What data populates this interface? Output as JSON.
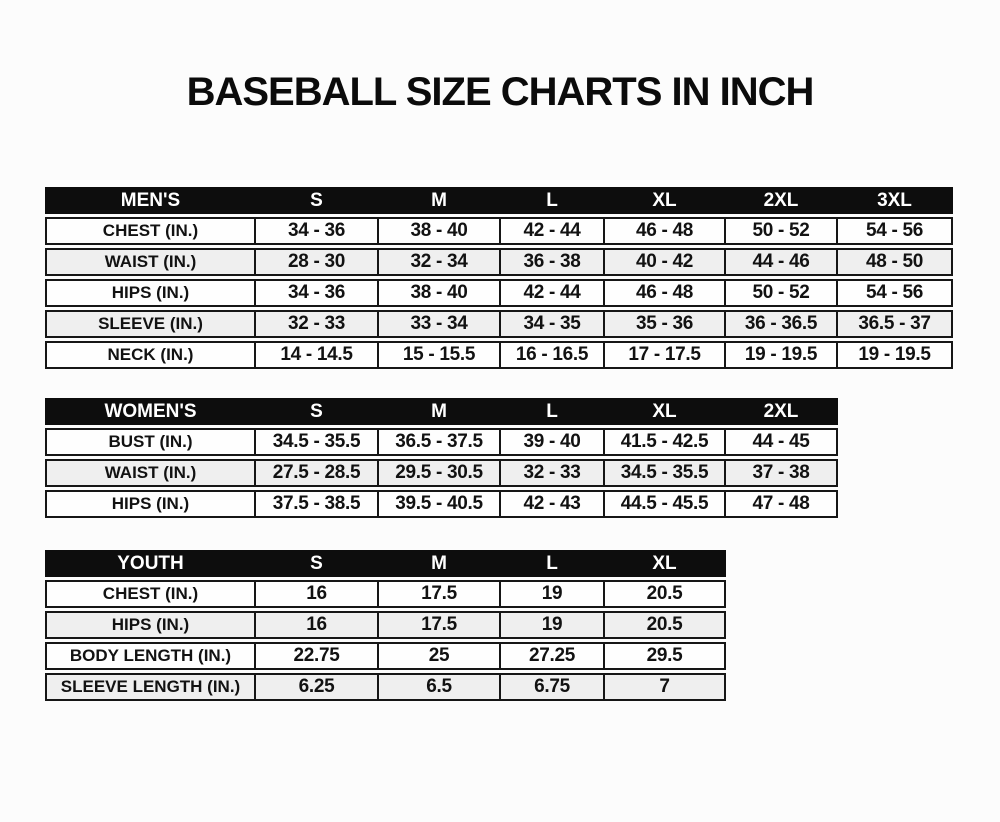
{
  "page": {
    "title": "BASEBALL SIZE CHARTS IN INCH"
  },
  "colors": {
    "header_bg": "#0d0d0d",
    "header_text": "#ffffff",
    "row_bg": "#fefefe",
    "row_alt_bg": "#efefef",
    "border": "#161616",
    "text": "#121212",
    "page_bg": "#fcfcfc"
  },
  "chart_data": [
    {
      "type": "table",
      "title": "MEN'S",
      "columns": [
        "MEN'S",
        "S",
        "M",
        "L",
        "XL",
        "2XL",
        "3XL"
      ],
      "rows": [
        {
          "label": "CHEST (IN.)",
          "values": [
            "34 - 36",
            "38 - 40",
            "42 - 44",
            "46 - 48",
            "50 - 52",
            "54 - 56"
          ]
        },
        {
          "label": "WAIST (IN.)",
          "values": [
            "28 - 30",
            "32 - 34",
            "36 - 38",
            "40 - 42",
            "44 - 46",
            "48 - 50"
          ]
        },
        {
          "label": "HIPS (IN.)",
          "values": [
            "34 - 36",
            "38 - 40",
            "42 - 44",
            "46 - 48",
            "50 - 52",
            "54 - 56"
          ]
        },
        {
          "label": "SLEEVE (IN.)",
          "values": [
            "32 - 33",
            "33 - 34",
            "34 - 35",
            "35 - 36",
            "36 - 36.5",
            "36.5 - 37"
          ]
        },
        {
          "label": "NECK (IN.)",
          "values": [
            "14 - 14.5",
            "15 - 15.5",
            "16 - 16.5",
            "17 - 17.5",
            "19 - 19.5",
            "19 - 19.5"
          ]
        }
      ]
    },
    {
      "type": "table",
      "title": "WOMEN'S",
      "columns": [
        "WOMEN'S",
        "S",
        "M",
        "L",
        "XL",
        "2XL"
      ],
      "rows": [
        {
          "label": "BUST (IN.)",
          "values": [
            "34.5 - 35.5",
            "36.5 - 37.5",
            "39 - 40",
            "41.5 - 42.5",
            "44 - 45"
          ]
        },
        {
          "label": "WAIST (IN.)",
          "values": [
            "27.5 - 28.5",
            "29.5 - 30.5",
            "32 - 33",
            "34.5 - 35.5",
            "37 - 38"
          ]
        },
        {
          "label": "HIPS (IN.)",
          "values": [
            "37.5 - 38.5",
            "39.5 - 40.5",
            "42 - 43",
            "44.5 - 45.5",
            "47 - 48"
          ]
        }
      ]
    },
    {
      "type": "table",
      "title": "YOUTH",
      "columns": [
        "YOUTH",
        "S",
        "M",
        "L",
        "XL"
      ],
      "rows": [
        {
          "label": "CHEST (IN.)",
          "values": [
            "16",
            "17.5",
            "19",
            "20.5"
          ]
        },
        {
          "label": "HIPS (IN.)",
          "values": [
            "16",
            "17.5",
            "19",
            "20.5"
          ]
        },
        {
          "label": "BODY LENGTH (IN.)",
          "values": [
            "22.75",
            "25",
            "27.25",
            "29.5"
          ]
        },
        {
          "label": "SLEEVE LENGTH (IN.)",
          "values": [
            "6.25",
            "6.5",
            "6.75",
            "7"
          ]
        }
      ]
    }
  ]
}
